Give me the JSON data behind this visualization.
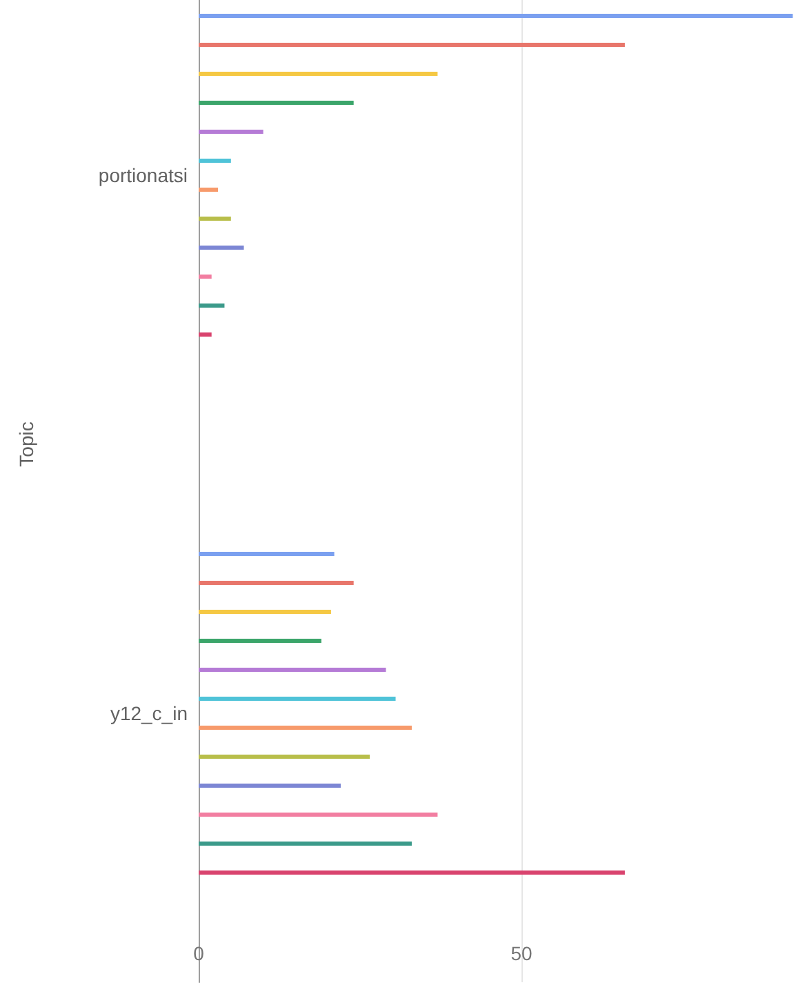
{
  "chart_data": {
    "type": "bar",
    "orientation": "horizontal",
    "ylabel": "Topic",
    "categories": [
      "portionatsi",
      "y12_c_in"
    ],
    "series": [
      {
        "color": "#7ba0f0",
        "values": [
          92,
          21
        ]
      },
      {
        "color": "#e8766b",
        "values": [
          66,
          24
        ]
      },
      {
        "color": "#f5c843",
        "values": [
          37,
          20.5
        ]
      },
      {
        "color": "#3ba56a",
        "values": [
          24,
          19
        ]
      },
      {
        "color": "#b57bd6",
        "values": [
          10,
          29
        ]
      },
      {
        "color": "#4fc3d8",
        "values": [
          5,
          30.5
        ]
      },
      {
        "color": "#f79a6b",
        "values": [
          3,
          33
        ]
      },
      {
        "color": "#b8be4a",
        "values": [
          5,
          26.5
        ]
      },
      {
        "color": "#7c86d4",
        "values": [
          7,
          22
        ]
      },
      {
        "color": "#f27ea1",
        "values": [
          2,
          37
        ]
      },
      {
        "color": "#3b9a8a",
        "values": [
          4,
          33
        ]
      },
      {
        "color": "#d9436e",
        "values": [
          2,
          66
        ]
      }
    ],
    "xlim": [
      0,
      92.5
    ],
    "xticks": [
      0,
      50
    ],
    "grid": "x"
  }
}
